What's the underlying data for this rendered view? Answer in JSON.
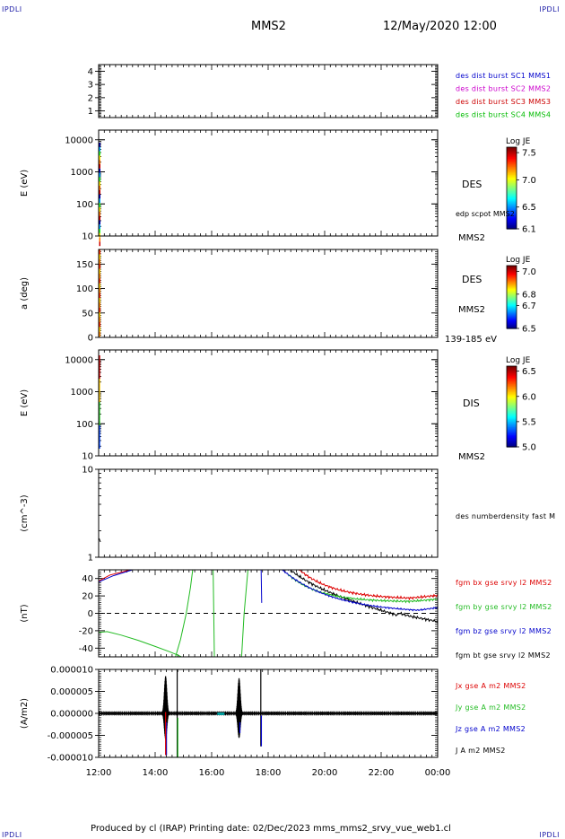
{
  "page": {
    "corner_label": "IPDLI",
    "title": "MMS2",
    "datetime": "12/May/2020 12:00",
    "footer": "Produced by cl (IRAP)   Printing date: 02/Dec/2023   mms_mms2_srvy_vue_web1.cl"
  },
  "chart_data": [
    {
      "type": "line",
      "title": "",
      "ylabel": "",
      "ylim": [
        0.5,
        4.5
      ],
      "y_ticks": [
        "1",
        "2",
        "3",
        "4"
      ],
      "legend": [
        {
          "label": "des dist burst SC1 MMS1",
          "color": "#0000cc"
        },
        {
          "label": "des dist burst SC2 MMS2",
          "color": "#cc00cc"
        },
        {
          "label": "des dist burst SC3 MMS3",
          "color": "#cc0000"
        },
        {
          "label": "des dist burst SC4 MMS4",
          "color": "#00bb00"
        }
      ]
    },
    {
      "type": "heatmap",
      "ylabel": "E (eV)",
      "yscale": "log",
      "ylim": [
        10,
        20000
      ],
      "y_ticks": [
        "10",
        "100",
        "1000",
        "10000"
      ],
      "label": "DES",
      "sub_label": "edp scpot MMS2",
      "bottom_label": "MMS2",
      "colorbar": {
        "title": "Log JE",
        "ticks": [
          "6.1",
          "6.5",
          "7.0",
          "7.5"
        ],
        "range": [
          6.1,
          7.6
        ]
      }
    },
    {
      "type": "heatmap",
      "ylabel": "a (deg)",
      "ylim": [
        0,
        180
      ],
      "y_ticks": [
        "0",
        "50",
        "100",
        "150"
      ],
      "label": "DES",
      "sub_label": "MMS2",
      "bottom_label": "139-185 eV",
      "colorbar": {
        "title": "Log JE",
        "ticks": [
          "6.5",
          "6.7",
          "6.8",
          "7.0"
        ],
        "range": [
          6.5,
          7.05
        ]
      }
    },
    {
      "type": "heatmap",
      "ylabel": "E (eV)",
      "yscale": "log",
      "ylim": [
        10,
        20000
      ],
      "y_ticks": [
        "10",
        "100",
        "1000",
        "10000"
      ],
      "label": "DIS",
      "bottom_label": "MMS2",
      "colorbar": {
        "title": "Log JE",
        "ticks": [
          "5.0",
          "5.5",
          "6.0",
          "6.5"
        ],
        "range": [
          5.0,
          6.6
        ]
      }
    },
    {
      "type": "line",
      "ylabel": "(cm^-3)",
      "yscale": "log",
      "ylim": [
        1,
        10
      ],
      "y_ticks": [
        "1",
        "10"
      ],
      "legend": [
        {
          "label": "des numberdensity fast M",
          "color": "#000000"
        }
      ]
    },
    {
      "type": "line",
      "ylabel": "(nT)",
      "ylim": [
        -50,
        50
      ],
      "y_ticks": [
        "-40",
        "-20",
        "0",
        "20",
        "40"
      ],
      "legend": [
        {
          "label": "fgm bx gse srvy l2 MMS2",
          "color": "#dd0000"
        },
        {
          "label": "fgm by gse srvy l2 MMS2",
          "color": "#22bb22"
        },
        {
          "label": "fgm bz gse srvy l2 MMS2",
          "color": "#0000cc"
        },
        {
          "label": "fgm bt gse srvy l2 MMS2",
          "color": "#000000"
        }
      ]
    },
    {
      "type": "line",
      "ylabel": "(A/m2)",
      "ylim": [
        -1e-05,
        1e-05
      ],
      "y_ticks": [
        "-0.000010",
        "-0.000005",
        "0.000000",
        "0.000005",
        "0.000010"
      ],
      "legend": [
        {
          "label": "Jx gse A m2 MMS2",
          "color": "#dd0000"
        },
        {
          "label": "Jy gse A m2 MMS2",
          "color": "#22bb22"
        },
        {
          "label": "Jz gse A m2 MMS2",
          "color": "#0000cc"
        },
        {
          "label": "J A m2 MMS2",
          "color": "#000000"
        }
      ],
      "x_ticks": [
        "12:00",
        "14:00",
        "16:00",
        "18:00",
        "20:00",
        "22:00",
        "00:00"
      ]
    }
  ]
}
